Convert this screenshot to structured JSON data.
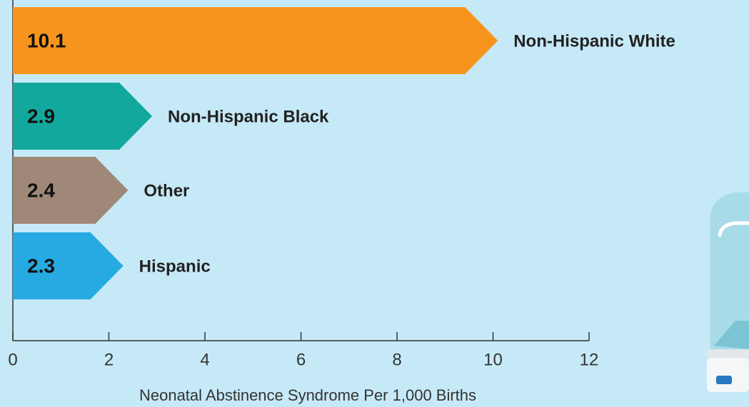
{
  "chart_data": {
    "type": "arrow-bar",
    "categories": [
      "Non-Hispanic White",
      "Non-Hispanic Black",
      "Other",
      "Hispanic"
    ],
    "values": [
      10.1,
      2.9,
      2.4,
      2.3
    ],
    "colors": [
      "#f7941d",
      "#12a89d",
      "#a08878",
      "#27aae1"
    ],
    "x_label": "Neonatal Abstinence Syndrome Per 1,000 Births",
    "xlim": [
      0,
      12
    ],
    "xticks": [
      0,
      2,
      4,
      6,
      8,
      10,
      12
    ]
  }
}
